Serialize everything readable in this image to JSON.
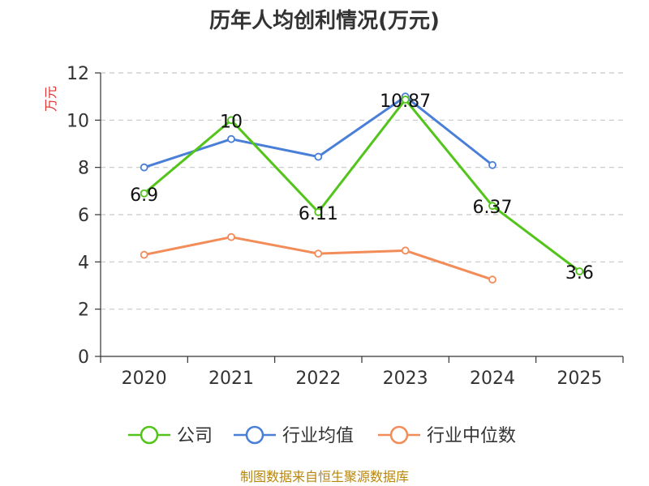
{
  "chart_data": {
    "type": "line",
    "title": "历年人均创利情况(万元)",
    "ylabel": "万元",
    "xlabel": "",
    "categories": [
      "2020",
      "2021",
      "2022",
      "2023",
      "2024",
      "2025"
    ],
    "ylim": [
      0,
      12
    ],
    "yticks": [
      "0",
      "2",
      "4",
      "6",
      "8",
      "10",
      "12"
    ],
    "grid": true,
    "legend_position": "bottom",
    "series": [
      {
        "name": "公司",
        "color": "#52c41a",
        "values": [
          6.9,
          10,
          6.11,
          10.87,
          6.37,
          3.6
        ],
        "labels": [
          "6.9",
          "10",
          "6.11",
          "10.87",
          "6.37",
          "3.6"
        ]
      },
      {
        "name": "行业均值",
        "color": "#4a7fd8",
        "values": [
          8.0,
          9.2,
          8.45,
          11.0,
          8.1,
          null
        ]
      },
      {
        "name": "行业中位数",
        "color": "#f28c58",
        "values": [
          4.3,
          5.05,
          4.35,
          4.48,
          3.25,
          null
        ]
      }
    ],
    "source": "制图数据来自恒生聚源数据库"
  }
}
